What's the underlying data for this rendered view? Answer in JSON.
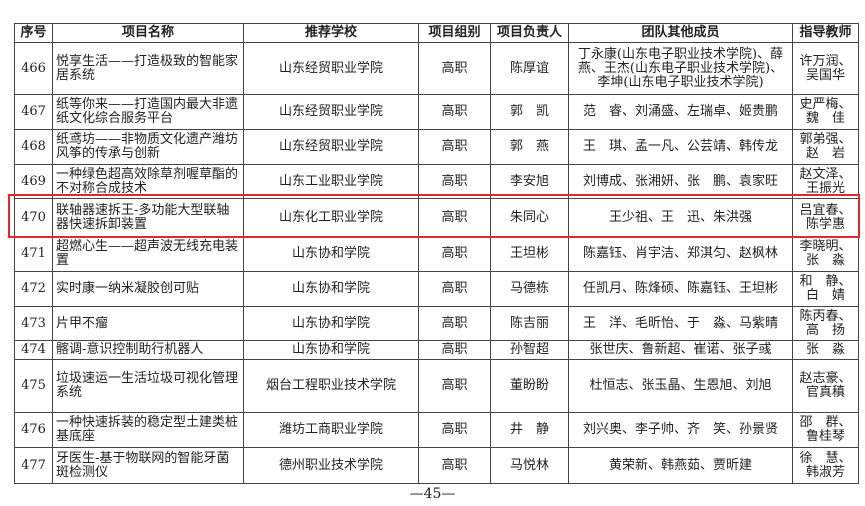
{
  "table": {
    "headers": [
      "序号",
      "项目名称",
      "推荐学校",
      "项目组别",
      "项目负责人",
      "团队其他成员",
      "指导教师"
    ],
    "rows": [
      {
        "no": "466",
        "name": "悦享生活——打造极致的智能家居系统",
        "school": "山东经贸职业学院",
        "group": "高职",
        "leader": "陈厚谊",
        "members": "丁永康(山东电子职业技术学院)、薛燕、王杰(山东电子职业技术学院)、李坤(山东电子职业技术学院)",
        "teachers": "许万润、吴国华"
      },
      {
        "no": "467",
        "name": "纸等你来——打造国内最大非遗纸文化综合服务平台",
        "school": "山东经贸职业学院",
        "group": "高职",
        "leader": "郭　凯",
        "members": "范　睿、刘涌盛、左瑞卓、姬贵鹏",
        "teachers": "史严梅、魏　佳"
      },
      {
        "no": "468",
        "name": "纸鸢坊——非物质文化遗产潍坊风筝的传承与创新",
        "school": "山东经贸职业学院",
        "group": "高职",
        "leader": "郭　燕",
        "members": "王　琪、孟一凡、公芸靖、韩传龙",
        "teachers": "郭弟强、赵　岩"
      },
      {
        "no": "469",
        "name": "一种绿色超高效除草剂喔草酯的不对称合成技术",
        "school": "山东工业职业学院",
        "group": "高职",
        "leader": "李安旭",
        "members": "刘博成、张湘妍、张　鹏、袁家旺",
        "teachers": "赵文泽、王振光"
      },
      {
        "no": "470",
        "name": "联轴器速拆王-多功能大型联轴器快速拆卸装置",
        "school": "山东化工职业学院",
        "group": "高职",
        "leader": "朱同心",
        "members": "王少祖、王　迅、朱洪强",
        "teachers": "吕宜春、陈学惠"
      },
      {
        "no": "471",
        "name": "超燃心生——超声波无线充电装置",
        "school": "山东协和学院",
        "group": "高职",
        "leader": "王坦彬",
        "members": "陈嘉钰、肖宇洁、郑淇匀、赵枫林",
        "teachers": "李晓明、张　淼"
      },
      {
        "no": "472",
        "name": "实时康一纳米凝胶创可贴",
        "school": "山东协和学院",
        "group": "高职",
        "leader": "马德栋",
        "members": "任凯月、陈烽硕、陈嘉钰、王坦彬",
        "teachers": "和　静、白　婧"
      },
      {
        "no": "473",
        "name": "片甲不瘤",
        "school": "山东协和学院",
        "group": "高职",
        "leader": "陈吉丽",
        "members": "王　洋、毛昕怡、于　淼、马紫晴",
        "teachers": "陈丙春、高　扬"
      },
      {
        "no": "474",
        "name": "髂调-意识控制助行机器人",
        "school": "山东协和学院",
        "group": "高职",
        "leader": "孙智超",
        "members": "张世庆、鲁新超、崔诺、张子彧",
        "teachers": "张　淼"
      },
      {
        "no": "475",
        "name": "垃圾速运一生活垃圾可视化管理系统",
        "school": "烟台工程职业技术学院",
        "group": "高职",
        "leader": "董盼盼",
        "members": "杜恒志、张玉晶、生恩旭、刘旭",
        "teachers": "赵志豪、官真稹"
      },
      {
        "no": "476",
        "name": "一种快速拆装的稳定型土建类桩基底座",
        "school": "潍坊工商职业学院",
        "group": "高职",
        "leader": "井　静",
        "members": "刘兴奥、李子帅、齐　笑、孙景贤",
        "teachers": "邵　群、鲁桂琴"
      },
      {
        "no": "477",
        "name": "牙医生-基于物联网的智能牙菌斑检测仪",
        "school": "德州职业技术学院",
        "group": "高职",
        "leader": "马悦林",
        "members": "黄荣新、韩燕茹、贾昕建",
        "teachers": "徐　慧、韩淑芳"
      }
    ]
  },
  "page_number": "—45—",
  "highlight_color": "#e8262b"
}
